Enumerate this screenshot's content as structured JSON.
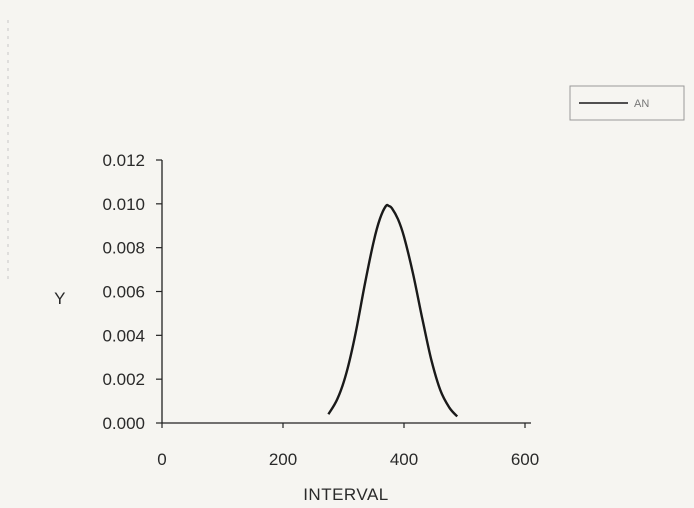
{
  "chart_data": {
    "type": "line",
    "title": "",
    "xlabel": "INTERVAL",
    "ylabel": "Y",
    "xlim": [
      0,
      600
    ],
    "ylim": [
      0,
      0.012
    ],
    "x_ticks": [
      0,
      200,
      400,
      600
    ],
    "y_ticks": [
      0,
      0.002,
      0.004,
      0.006,
      0.008,
      0.01,
      0.012
    ],
    "x_tick_labels": [
      "0",
      "200",
      "400",
      "600"
    ],
    "y_tick_labels": [
      "0.000",
      "0.002",
      "0.004",
      "0.006",
      "0.008",
      "0.010",
      "0.012"
    ],
    "grid": false,
    "legend": "top-right",
    "series": [
      {
        "name": "AN",
        "color": "#1a1a1a",
        "x": [
          275,
          290,
          305,
          320,
          335,
          350,
          360,
          370,
          375,
          380,
          390,
          400,
          415,
          430,
          445,
          460,
          475,
          488
        ],
        "y": [
          0.0004,
          0.0011,
          0.0023,
          0.0041,
          0.0063,
          0.0083,
          0.0093,
          0.0099,
          0.0099,
          0.0098,
          0.0093,
          0.0085,
          0.0068,
          0.0048,
          0.0029,
          0.0015,
          0.0007,
          0.0003
        ]
      }
    ]
  }
}
